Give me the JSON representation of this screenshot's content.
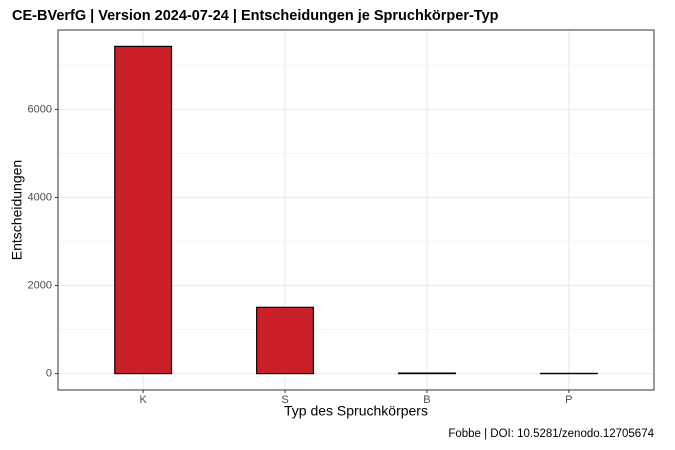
{
  "chart_data": {
    "type": "bar",
    "title": "CE-BVerfG | Version 2024-07-24 | Entscheidungen je Spruchkörper-Typ",
    "x_label": "Typ des Spruchkörpers",
    "y_label": "Entscheidungen",
    "caption": "Fobbe | DOI: 10.5281/zenodo.12705674",
    "categories": [
      "K",
      "S",
      "B",
      "P"
    ],
    "values": [
      7430,
      1505,
      12,
      5
    ],
    "color": "#cb2027",
    "ylim": [
      -372,
      7802
    ],
    "yticks": [
      0,
      2000,
      4000,
      6000
    ],
    "minor_yticks": [
      1000,
      3000,
      5000,
      7000
    ],
    "grid": true
  }
}
